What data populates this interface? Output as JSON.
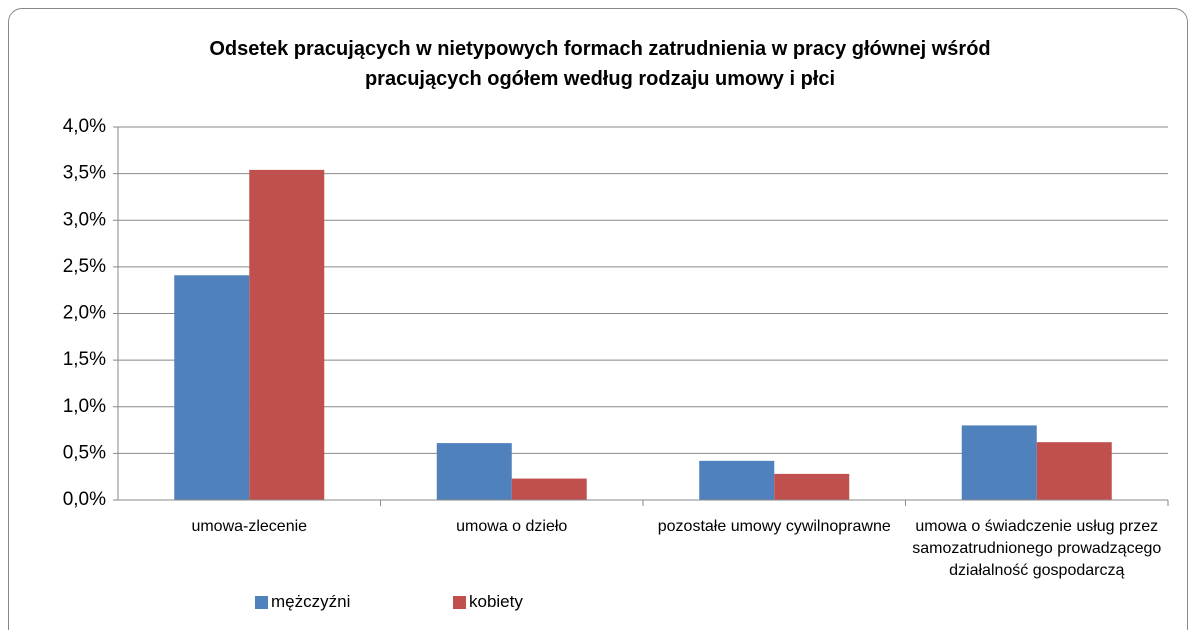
{
  "chart_data": {
    "type": "bar",
    "title": "Odsetek pracujących  w nietypowych formach zatrudnienia w pracy głównej wśród pracujących  ogółem według rodzaju umowy i płci",
    "categories": [
      "umowa-zlecenie",
      "umowa o dzieło",
      "pozostałe umowy cywilnoprawne",
      "umowa o świadczenie usług przez samozatrudnionego prowadzącego działalność gospodarczą"
    ],
    "series": [
      {
        "name": "mężczyźni",
        "color": "#4f81bd",
        "values": [
          2.41,
          0.61,
          0.42,
          0.8
        ]
      },
      {
        "name": "kobiety",
        "color": "#c0504d",
        "values": [
          3.54,
          0.23,
          0.28,
          0.62
        ]
      }
    ],
    "ylim": [
      0,
      4
    ],
    "yticks": [
      {
        "value": 0,
        "label": "0,0%"
      },
      {
        "value": 0.5,
        "label": "0,5%"
      },
      {
        "value": 1,
        "label": "1,0%"
      },
      {
        "value": 1.5,
        "label": "1,5%"
      },
      {
        "value": 2,
        "label": "2,0%"
      },
      {
        "value": 2.5,
        "label": "2,5%"
      },
      {
        "value": 3,
        "label": "3,0%"
      },
      {
        "value": 3.5,
        "label": "3,5%"
      },
      {
        "value": 4,
        "label": "4,0%"
      }
    ],
    "grid": true,
    "legend": "bottom"
  }
}
